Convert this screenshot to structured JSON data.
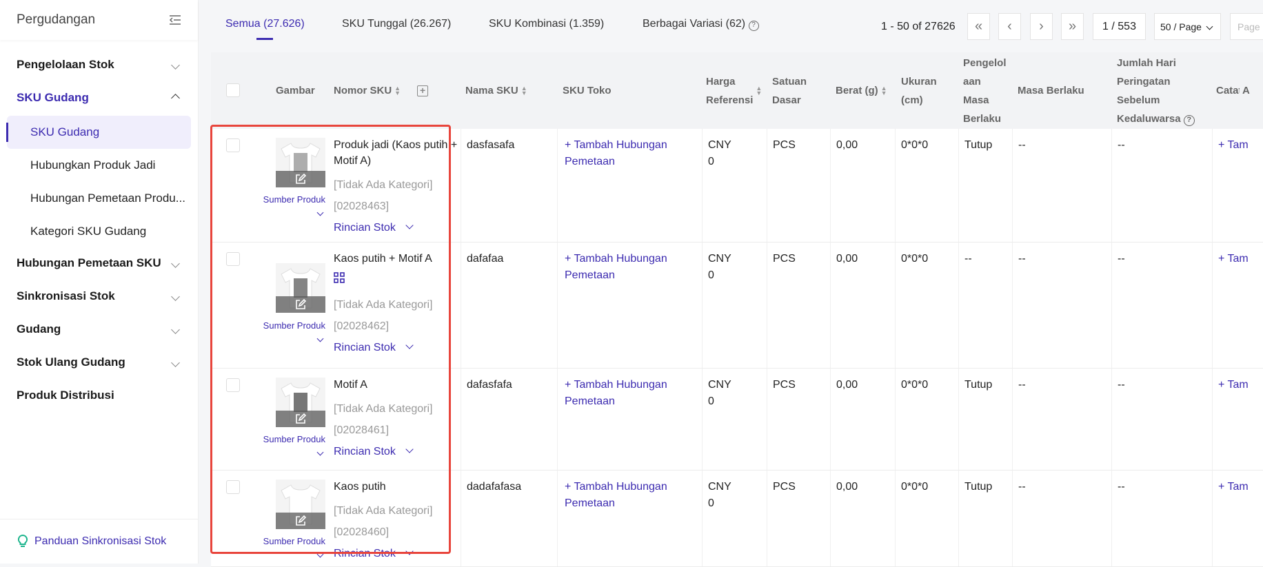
{
  "sidebar": {
    "title": "Pergudangan",
    "groups": [
      {
        "label": "Pengelolaan Stok"
      },
      {
        "label": "SKU Gudang",
        "items": [
          "SKU Gudang",
          "Hubungkan Produk Jadi",
          "Hubungan Pemetaan Produ...",
          "Kategori SKU Gudang"
        ]
      },
      {
        "label": "Hubungan Pemetaan SKU"
      },
      {
        "label": "Sinkronisasi Stok"
      },
      {
        "label": "Gudang"
      },
      {
        "label": "Stok Ulang Gudang"
      },
      {
        "label": "Produk Distribusi"
      }
    ],
    "footer": "Panduan Sinkronisasi Stok"
  },
  "tabs": [
    "Semua (27.626)",
    "SKU Tunggal (26.267)",
    "SKU Kombinasi (1.359)",
    "Berbagai Variasi (62)"
  ],
  "pagination": {
    "range": "1 - 50 of 27626",
    "page": "1 / 553",
    "per_page": "50 / Page",
    "goto_placeholder": "Page"
  },
  "columns": [
    "Gambar",
    "Nomor SKU",
    "Nama SKU",
    "SKU Toko",
    "Harga Referensi",
    "Satuan Dasar",
    "Berat (g)",
    "Ukuran (cm)",
    "Pengelol aan Masa Berlaku",
    "Masa Berlaku",
    "Jumlah Hari Peringatan Sebelum Kedaluwarsa",
    "Catatan",
    "A"
  ],
  "row_labels": {
    "source": "Sumber Produk",
    "stock_detail": "Rincian Stok",
    "add_mapping": "+ Tambah Hubungan Pemetaan",
    "add_short": "+ Tam"
  },
  "rows": [
    {
      "sku": "Produk jadi (Kaos putih + Motif A)",
      "category": "[Tidak Ada Kategori]",
      "code": "[02028463]",
      "name": "dasfasafa",
      "price_cur": "CNY",
      "price": "0",
      "unit": "PCS",
      "weight": "0,00",
      "size": "0*0*0",
      "mgmt": "Tutup",
      "validity": "--",
      "warn": "--"
    },
    {
      "sku": "Kaos putih + Motif A",
      "combo": true,
      "category": "[Tidak Ada Kategori]",
      "code": "[02028462]",
      "name": "dafafaa",
      "price_cur": "CNY",
      "price": "0",
      "unit": "PCS",
      "weight": "0,00",
      "size": "0*0*0",
      "mgmt": "--",
      "validity": "--",
      "warn": "--"
    },
    {
      "sku": "Motif A",
      "category": "[Tidak Ada Kategori]",
      "code": "[02028461]",
      "name": "dafasfafa",
      "price_cur": "CNY",
      "price": "0",
      "unit": "PCS",
      "weight": "0,00",
      "size": "0*0*0",
      "mgmt": "Tutup",
      "validity": "--",
      "warn": "--"
    },
    {
      "sku": "Kaos putih",
      "category": "[Tidak Ada Kategori]",
      "code": "[02028460]",
      "name": "dadafafasa",
      "price_cur": "CNY",
      "price": "0",
      "unit": "PCS",
      "weight": "0,00",
      "size": "0*0*0",
      "mgmt": "Tutup",
      "validity": "--",
      "warn": "--"
    }
  ],
  "colors": {
    "accent": "#3c2bb0",
    "highlight": "#e8453c",
    "tip_icon": "#18b38a"
  }
}
